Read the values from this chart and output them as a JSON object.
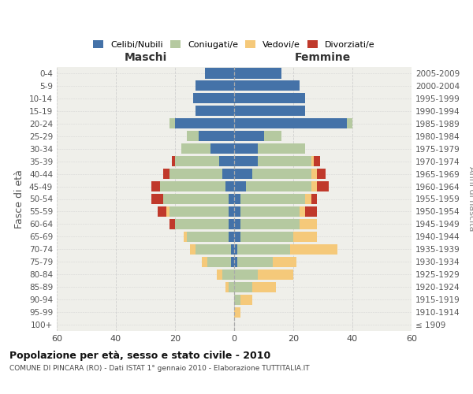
{
  "age_groups": [
    "0-4",
    "5-9",
    "10-14",
    "15-19",
    "20-24",
    "25-29",
    "30-34",
    "35-39",
    "40-44",
    "45-49",
    "50-54",
    "55-59",
    "60-64",
    "65-69",
    "70-74",
    "75-79",
    "80-84",
    "85-89",
    "90-94",
    "95-99",
    "100+"
  ],
  "birth_years": [
    "2005-2009",
    "2000-2004",
    "1995-1999",
    "1990-1994",
    "1985-1989",
    "1980-1984",
    "1975-1979",
    "1970-1974",
    "1965-1969",
    "1960-1964",
    "1955-1959",
    "1950-1954",
    "1945-1949",
    "1940-1944",
    "1935-1939",
    "1930-1934",
    "1925-1929",
    "1920-1924",
    "1915-1919",
    "1910-1914",
    "≤ 1909"
  ],
  "males": {
    "celibi": [
      10,
      13,
      14,
      13,
      20,
      12,
      8,
      5,
      4,
      3,
      2,
      2,
      2,
      2,
      1,
      1,
      0,
      0,
      0,
      0,
      0
    ],
    "coniugati": [
      0,
      0,
      0,
      0,
      2,
      4,
      10,
      15,
      18,
      22,
      22,
      20,
      18,
      14,
      12,
      8,
      4,
      2,
      0,
      0,
      0
    ],
    "vedovi": [
      0,
      0,
      0,
      0,
      0,
      0,
      0,
      0,
      0,
      0,
      0,
      1,
      0,
      1,
      2,
      2,
      2,
      1,
      0,
      0,
      0
    ],
    "divorziati": [
      0,
      0,
      0,
      0,
      0,
      0,
      0,
      1,
      2,
      3,
      4,
      3,
      2,
      0,
      0,
      0,
      0,
      0,
      0,
      0,
      0
    ]
  },
  "females": {
    "nubili": [
      16,
      22,
      24,
      24,
      38,
      10,
      8,
      8,
      6,
      4,
      2,
      2,
      2,
      2,
      1,
      1,
      0,
      0,
      0,
      0,
      0
    ],
    "coniugate": [
      0,
      0,
      0,
      0,
      2,
      6,
      16,
      18,
      20,
      22,
      22,
      20,
      20,
      18,
      18,
      12,
      8,
      6,
      2,
      0,
      0
    ],
    "vedove": [
      0,
      0,
      0,
      0,
      0,
      0,
      0,
      1,
      2,
      2,
      2,
      2,
      6,
      8,
      16,
      8,
      12,
      8,
      4,
      2,
      0
    ],
    "divorziate": [
      0,
      0,
      0,
      0,
      0,
      0,
      0,
      2,
      3,
      4,
      2,
      4,
      0,
      0,
      0,
      0,
      0,
      0,
      0,
      0,
      0
    ]
  },
  "color_celibi": "#4472a8",
  "color_coniugati": "#b5c9a0",
  "color_vedovi": "#f5c97a",
  "color_divorziati": "#c0392b",
  "xlim": 60,
  "title": "Popolazione per età, sesso e stato civile - 2010",
  "subtitle": "COMUNE DI PINCARA (RO) - Dati ISTAT 1° gennaio 2010 - Elaborazione TUTTITALIA.IT",
  "ylabel": "Fasce di età",
  "ylabel_right": "Anni di nascita",
  "xlabel_maschi": "Maschi",
  "xlabel_femmine": "Femmine",
  "bg_color": "#efefea",
  "grid_color": "#cccccc"
}
